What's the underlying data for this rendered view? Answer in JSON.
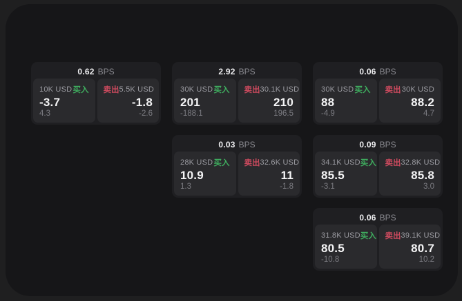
{
  "labels": {
    "buy": "买入",
    "sell": "卖出",
    "bps_unit": "BPS"
  },
  "colors": {
    "buy": "#3fae5f",
    "sell": "#cc4a5e",
    "panel_background": "#161618",
    "card_background": "#1f1f22",
    "quote_background": "#2a2a2d"
  },
  "cards": [
    {
      "bps": "0.62",
      "row": 1,
      "col": 1,
      "buy": {
        "amount": "10K USD",
        "price": "-3.7",
        "change": "4.3"
      },
      "sell": {
        "amount": "5.5K USD",
        "price": "-1.8",
        "change": "-2.6"
      }
    },
    {
      "bps": "2.92",
      "row": 1,
      "col": 2,
      "buy": {
        "amount": "30K USD",
        "price": "201",
        "change": "-188.1"
      },
      "sell": {
        "amount": "30.1K USD",
        "price": "210",
        "change": "196.5"
      }
    },
    {
      "bps": "0.06",
      "row": 1,
      "col": 3,
      "buy": {
        "amount": "30K USD",
        "price": "88",
        "change": "-4.9"
      },
      "sell": {
        "amount": "30K USD",
        "price": "88.2",
        "change": "4.7"
      }
    },
    {
      "bps": "0.03",
      "row": 2,
      "col": 2,
      "buy": {
        "amount": "28K USD",
        "price": "10.9",
        "change": "1.3"
      },
      "sell": {
        "amount": "32.6K USD",
        "price": "11",
        "change": "-1.8"
      }
    },
    {
      "bps": "0.09",
      "row": 2,
      "col": 3,
      "buy": {
        "amount": "34.1K USD",
        "price": "85.5",
        "change": "-3.1"
      },
      "sell": {
        "amount": "32.8K USD",
        "price": "85.8",
        "change": "3.0"
      }
    },
    {
      "bps": "0.06",
      "row": 3,
      "col": 3,
      "buy": {
        "amount": "31.8K USD",
        "price": "80.5",
        "change": "-10.8"
      },
      "sell": {
        "amount": "39.1K USD",
        "price": "80.7",
        "change": "10.2"
      }
    }
  ]
}
